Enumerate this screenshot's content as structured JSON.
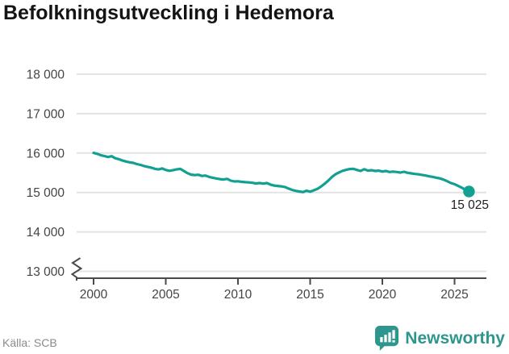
{
  "title": "Befolkningsutveckling i Hedemora",
  "source": "Källa: SCB",
  "brand": {
    "name": "Newsworthy",
    "color": "#2e968c",
    "icon": "bar-chart-speech-bubble-icon"
  },
  "chart_data": {
    "type": "line",
    "title": "Befolkningsutveckling i Hedemora",
    "xlabel": "",
    "ylabel": "",
    "grid": "horizontal",
    "legend": "none",
    "axis_break_bottom": true,
    "line_color": "#12a092",
    "grid_color": "#e3e3e3",
    "axis_color": "#4a4a4a",
    "tick_label_color": "#444444",
    "end_label": "15 025",
    "end_value": 15025,
    "x_ticks": [
      {
        "value": 2000,
        "label": "2000"
      },
      {
        "value": 2005,
        "label": "2005"
      },
      {
        "value": 2010,
        "label": "2010"
      },
      {
        "value": 2015,
        "label": "2015"
      },
      {
        "value": 2020,
        "label": "2020"
      },
      {
        "value": 2025,
        "label": "2025"
      }
    ],
    "y_ticks": [
      {
        "value": 13000,
        "label": "13 000"
      },
      {
        "value": 14000,
        "label": "14 000"
      },
      {
        "value": 15000,
        "label": "15 000"
      },
      {
        "value": 16000,
        "label": "16 000"
      },
      {
        "value": 17000,
        "label": "17 000"
      },
      {
        "value": 18000,
        "label": "18 000"
      }
    ],
    "x_range": [
      2000,
      2026.1
    ],
    "y_range": [
      12800,
      18200
    ],
    "series": [
      {
        "name": "Befolkning",
        "points": [
          [
            2000.0,
            16005
          ],
          [
            2000.25,
            15980
          ],
          [
            2000.5,
            15945
          ],
          [
            2000.75,
            15925
          ],
          [
            2001.0,
            15900
          ],
          [
            2001.25,
            15920
          ],
          [
            2001.5,
            15870
          ],
          [
            2001.75,
            15845
          ],
          [
            2002.0,
            15810
          ],
          [
            2002.25,
            15785
          ],
          [
            2002.5,
            15765
          ],
          [
            2002.75,
            15750
          ],
          [
            2003.0,
            15720
          ],
          [
            2003.25,
            15700
          ],
          [
            2003.5,
            15670
          ],
          [
            2003.75,
            15650
          ],
          [
            2004.0,
            15630
          ],
          [
            2004.25,
            15600
          ],
          [
            2004.5,
            15585
          ],
          [
            2004.75,
            15610
          ],
          [
            2005.0,
            15570
          ],
          [
            2005.25,
            15550
          ],
          [
            2005.5,
            15565
          ],
          [
            2005.75,
            15585
          ],
          [
            2006.0,
            15600
          ],
          [
            2006.25,
            15545
          ],
          [
            2006.5,
            15490
          ],
          [
            2006.75,
            15455
          ],
          [
            2007.0,
            15440
          ],
          [
            2007.25,
            15450
          ],
          [
            2007.5,
            15420
          ],
          [
            2007.75,
            15430
          ],
          [
            2008.0,
            15395
          ],
          [
            2008.25,
            15375
          ],
          [
            2008.5,
            15355
          ],
          [
            2008.75,
            15340
          ],
          [
            2009.0,
            15330
          ],
          [
            2009.25,
            15345
          ],
          [
            2009.5,
            15300
          ],
          [
            2009.75,
            15280
          ],
          [
            2010.0,
            15285
          ],
          [
            2010.25,
            15270
          ],
          [
            2010.5,
            15262
          ],
          [
            2010.75,
            15255
          ],
          [
            2011.0,
            15245
          ],
          [
            2011.25,
            15230
          ],
          [
            2011.5,
            15240
          ],
          [
            2011.75,
            15225
          ],
          [
            2012.0,
            15240
          ],
          [
            2012.25,
            15200
          ],
          [
            2012.5,
            15175
          ],
          [
            2012.75,
            15165
          ],
          [
            2013.0,
            15155
          ],
          [
            2013.25,
            15140
          ],
          [
            2013.5,
            15100
          ],
          [
            2013.75,
            15065
          ],
          [
            2014.0,
            15040
          ],
          [
            2014.25,
            15025
          ],
          [
            2014.5,
            15010
          ],
          [
            2014.75,
            15045
          ],
          [
            2015.0,
            15020
          ],
          [
            2015.25,
            15055
          ],
          [
            2015.5,
            15090
          ],
          [
            2015.75,
            15150
          ],
          [
            2016.0,
            15220
          ],
          [
            2016.25,
            15300
          ],
          [
            2016.5,
            15390
          ],
          [
            2016.75,
            15460
          ],
          [
            2017.0,
            15510
          ],
          [
            2017.25,
            15550
          ],
          [
            2017.5,
            15575
          ],
          [
            2017.75,
            15595
          ],
          [
            2018.0,
            15600
          ],
          [
            2018.25,
            15570
          ],
          [
            2018.5,
            15545
          ],
          [
            2018.75,
            15590
          ],
          [
            2019.0,
            15555
          ],
          [
            2019.25,
            15565
          ],
          [
            2019.5,
            15545
          ],
          [
            2019.75,
            15555
          ],
          [
            2020.0,
            15530
          ],
          [
            2020.25,
            15545
          ],
          [
            2020.5,
            15520
          ],
          [
            2020.75,
            15530
          ],
          [
            2021.0,
            15520
          ],
          [
            2021.25,
            15505
          ],
          [
            2021.5,
            15525
          ],
          [
            2021.75,
            15500
          ],
          [
            2022.0,
            15485
          ],
          [
            2022.25,
            15470
          ],
          [
            2022.5,
            15460
          ],
          [
            2022.75,
            15445
          ],
          [
            2023.0,
            15430
          ],
          [
            2023.25,
            15410
          ],
          [
            2023.5,
            15395
          ],
          [
            2023.75,
            15375
          ],
          [
            2024.0,
            15355
          ],
          [
            2024.25,
            15325
          ],
          [
            2024.5,
            15285
          ],
          [
            2024.75,
            15240
          ],
          [
            2025.0,
            15210
          ],
          [
            2025.25,
            15165
          ],
          [
            2025.5,
            15120
          ],
          [
            2025.75,
            15070
          ],
          [
            2026.0,
            15025
          ]
        ]
      }
    ]
  }
}
